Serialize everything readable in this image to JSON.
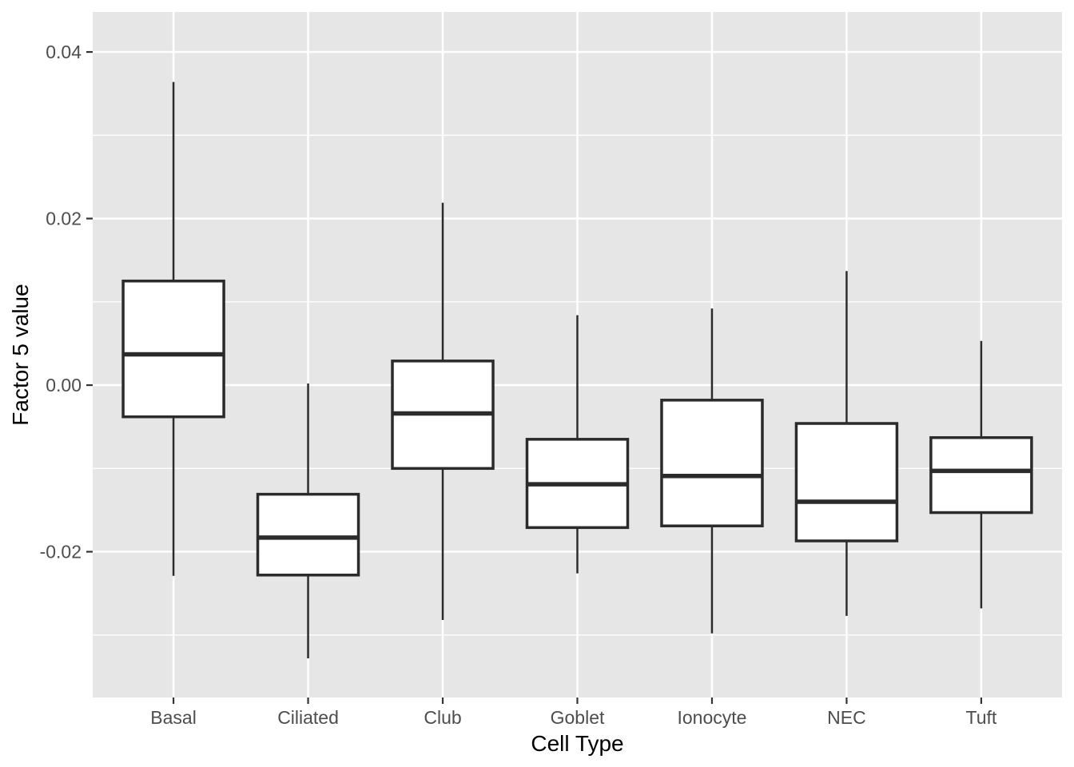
{
  "chart_data": {
    "type": "boxplot",
    "title": "",
    "xlabel": "Cell Type",
    "ylabel": "Factor 5 value",
    "categories": [
      "Basal",
      "Ciliated",
      "Club",
      "Goblet",
      "Ionocyte",
      "NEC",
      "Tuft"
    ],
    "series": [
      {
        "name": "Basal",
        "whisker_low": -0.0229,
        "q1": -0.0038,
        "median": 0.0037,
        "q3": 0.0125,
        "whisker_high": 0.0364
      },
      {
        "name": "Ciliated",
        "whisker_low": -0.0328,
        "q1": -0.0228,
        "median": -0.0183,
        "q3": -0.0131,
        "whisker_high": 0.0002
      },
      {
        "name": "Club",
        "whisker_low": -0.0282,
        "q1": -0.01,
        "median": -0.0034,
        "q3": 0.0029,
        "whisker_high": 0.0219
      },
      {
        "name": "Goblet",
        "whisker_low": -0.0226,
        "q1": -0.0171,
        "median": -0.0119,
        "q3": -0.0065,
        "whisker_high": 0.0084
      },
      {
        "name": "Ionocyte",
        "whisker_low": -0.0298,
        "q1": -0.0169,
        "median": -0.0109,
        "q3": -0.0018,
        "whisker_high": 0.0092
      },
      {
        "name": "NEC",
        "whisker_low": -0.0277,
        "q1": -0.0187,
        "median": -0.014,
        "q3": -0.0046,
        "whisker_high": 0.0137
      },
      {
        "name": "Tuft",
        "whisker_low": -0.0268,
        "q1": -0.0153,
        "median": -0.0103,
        "q3": -0.0063,
        "whisker_high": 0.0053
      }
    ],
    "ylim": [
      -0.0375,
      0.0448
    ],
    "yticks": [
      0.04,
      0.02,
      0.0,
      -0.02
    ],
    "ytick_labels": [
      "0.04",
      "0.02",
      "0.00",
      "-0.02"
    ],
    "y_minor_gridlines": [
      0.03,
      0.01,
      -0.01,
      -0.03
    ],
    "grid": true,
    "legend": "none",
    "style": {
      "panel_bg": "#E6E6E6",
      "grid_color": "#FFFFFF",
      "box_fill": "#FFFFFF",
      "box_stroke": "#2B2B2B",
      "tick_color": "#333333",
      "tick_label_color": "#4D4D4D",
      "axis_title_color": "#000000"
    }
  }
}
